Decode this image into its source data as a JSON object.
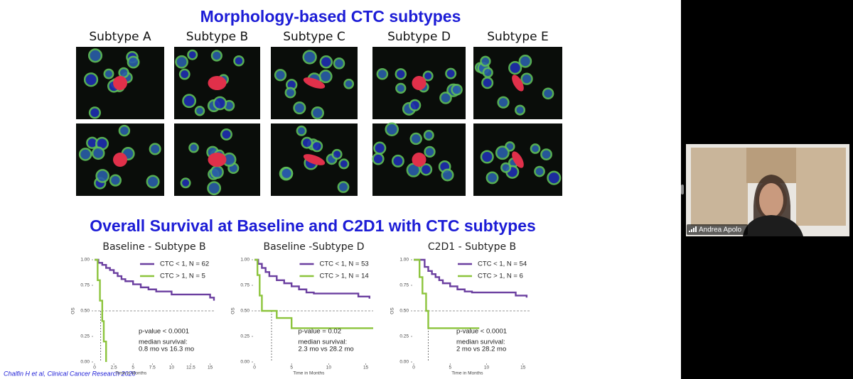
{
  "slide": {
    "title": "Morphology-based CTC subtypes",
    "subtypes": [
      "Subtype A",
      "Subtype B",
      "Subtype C",
      "Subtype D",
      "Subtype E"
    ],
    "section_title": "Overall Survival at Baseline and C2D1 with CTC subtypes",
    "citation": "Chalfin H et al, Clinical Cancer Research 2020",
    "charts": [
      {
        "type": "line",
        "step": true,
        "title": "Baseline - Subtype B",
        "xlabel": "Time in Months",
        "ylabel": "OS",
        "xlim": [
          0,
          15.5
        ],
        "ylim": [
          0,
          1
        ],
        "xticks": [
          0,
          2.5,
          5,
          7.5,
          10,
          12.5,
          15
        ],
        "yticks": [
          {
            "value": 0,
            "label": "0.00"
          },
          {
            "value": 0.25,
            "label": "0.25"
          },
          {
            "value": 0.5,
            "label": "0.50"
          },
          {
            "value": 0.75,
            "label": "0.75"
          },
          {
            "value": 1,
            "label": "1.00"
          }
        ],
        "reference_y": 0.5,
        "median_x": 0.8,
        "series": [
          {
            "name": "CTC < 1, N = 62",
            "color": "#6b3fa0",
            "x": [
              0,
              0.5,
              1,
              1.5,
              2,
              2.5,
              3,
              3.5,
              4,
              5,
              6,
              7,
              8,
              10,
              13,
              15,
              15.5
            ],
            "values": [
              1,
              0.97,
              0.95,
              0.92,
              0.9,
              0.87,
              0.84,
              0.81,
              0.79,
              0.76,
              0.73,
              0.71,
              0.69,
              0.66,
              0.66,
              0.63,
              0.6
            ]
          },
          {
            "name": "CTC > 1, N = 5",
            "color": "#8cc43c",
            "x": [
              0,
              0.4,
              0.7,
              1,
              1.2,
              1.5
            ],
            "values": [
              1,
              0.8,
              0.6,
              0.4,
              0.2,
              0
            ]
          }
        ],
        "annotations": [
          "p-value < 0.0001",
          "median survival:",
          "0.8 mo vs 16.3 mo"
        ]
      },
      {
        "type": "line",
        "step": true,
        "title": "Baseline -Subtype D",
        "xlabel": "Time in Months",
        "ylabel": "OS",
        "xlim": [
          0,
          16
        ],
        "ylim": [
          0,
          1
        ],
        "xticks": [
          0,
          5,
          10,
          15
        ],
        "yticks": [
          {
            "value": 0,
            "label": "0.00"
          },
          {
            "value": 0.25,
            "label": "0.25"
          },
          {
            "value": 0.5,
            "label": "0.50"
          },
          {
            "value": 0.75,
            "label": "0.75"
          },
          {
            "value": 1,
            "label": "1.00"
          }
        ],
        "reference_y": 0.5,
        "median_x": 2.3,
        "series": [
          {
            "name": "CTC < 1, N = 53",
            "color": "#6b3fa0",
            "x": [
              0,
              0.5,
              1,
              1.5,
              2,
              3,
              4,
              5,
              6,
              7,
              8,
              10,
              12,
              14,
              15.5
            ],
            "values": [
              1,
              0.96,
              0.92,
              0.88,
              0.84,
              0.8,
              0.77,
              0.74,
              0.71,
              0.68,
              0.67,
              0.67,
              0.67,
              0.64,
              0.62
            ]
          },
          {
            "name": "CTC > 1, N = 14",
            "color": "#8cc43c",
            "x": [
              0,
              0.4,
              0.7,
              1,
              3,
              5,
              16
            ],
            "values": [
              1,
              0.85,
              0.65,
              0.5,
              0.43,
              0.33,
              0.33
            ]
          }
        ],
        "annotations": [
          "p-value = 0.02",
          "median survival:",
          "2.3 mo vs 28.2 mo"
        ]
      },
      {
        "type": "line",
        "step": true,
        "title": "C2D1 - Subtype B",
        "xlabel": "Time in Months",
        "ylabel": "OS",
        "xlim": [
          0,
          16
        ],
        "ylim": [
          0,
          1
        ],
        "xticks": [
          0,
          5,
          10,
          15
        ],
        "yticks": [
          {
            "value": 0,
            "label": "0.00"
          },
          {
            "value": 0.25,
            "label": "0.25"
          },
          {
            "value": 0.5,
            "label": "0.50"
          },
          {
            "value": 0.75,
            "label": "0.75"
          },
          {
            "value": 1,
            "label": "1.00"
          }
        ],
        "reference_y": 0.5,
        "median_x": 2,
        "series": [
          {
            "name": "CTC < 1, N = 54",
            "color": "#6b3fa0",
            "x": [
              0,
              1,
              1.5,
              2,
              2.5,
              3,
              3.5,
              4,
              5,
              6,
              7,
              8,
              13,
              14,
              15.5
            ],
            "values": [
              1,
              1,
              0.93,
              0.89,
              0.86,
              0.83,
              0.8,
              0.77,
              0.74,
              0.71,
              0.69,
              0.68,
              0.68,
              0.65,
              0.63
            ]
          },
          {
            "name": "CTC > 1, N = 6",
            "color": "#8cc43c",
            "x": [
              0,
              0.8,
              1.2,
              1.7,
              2,
              9
            ],
            "values": [
              1,
              0.83,
              0.67,
              0.5,
              0.33,
              0.33
            ]
          }
        ],
        "annotations": [
          "p-value < 0.0001",
          "median survival:",
          "2 mo vs 28.2 mo"
        ]
      }
    ]
  },
  "participant": {
    "name": "Andrea Apolo"
  }
}
